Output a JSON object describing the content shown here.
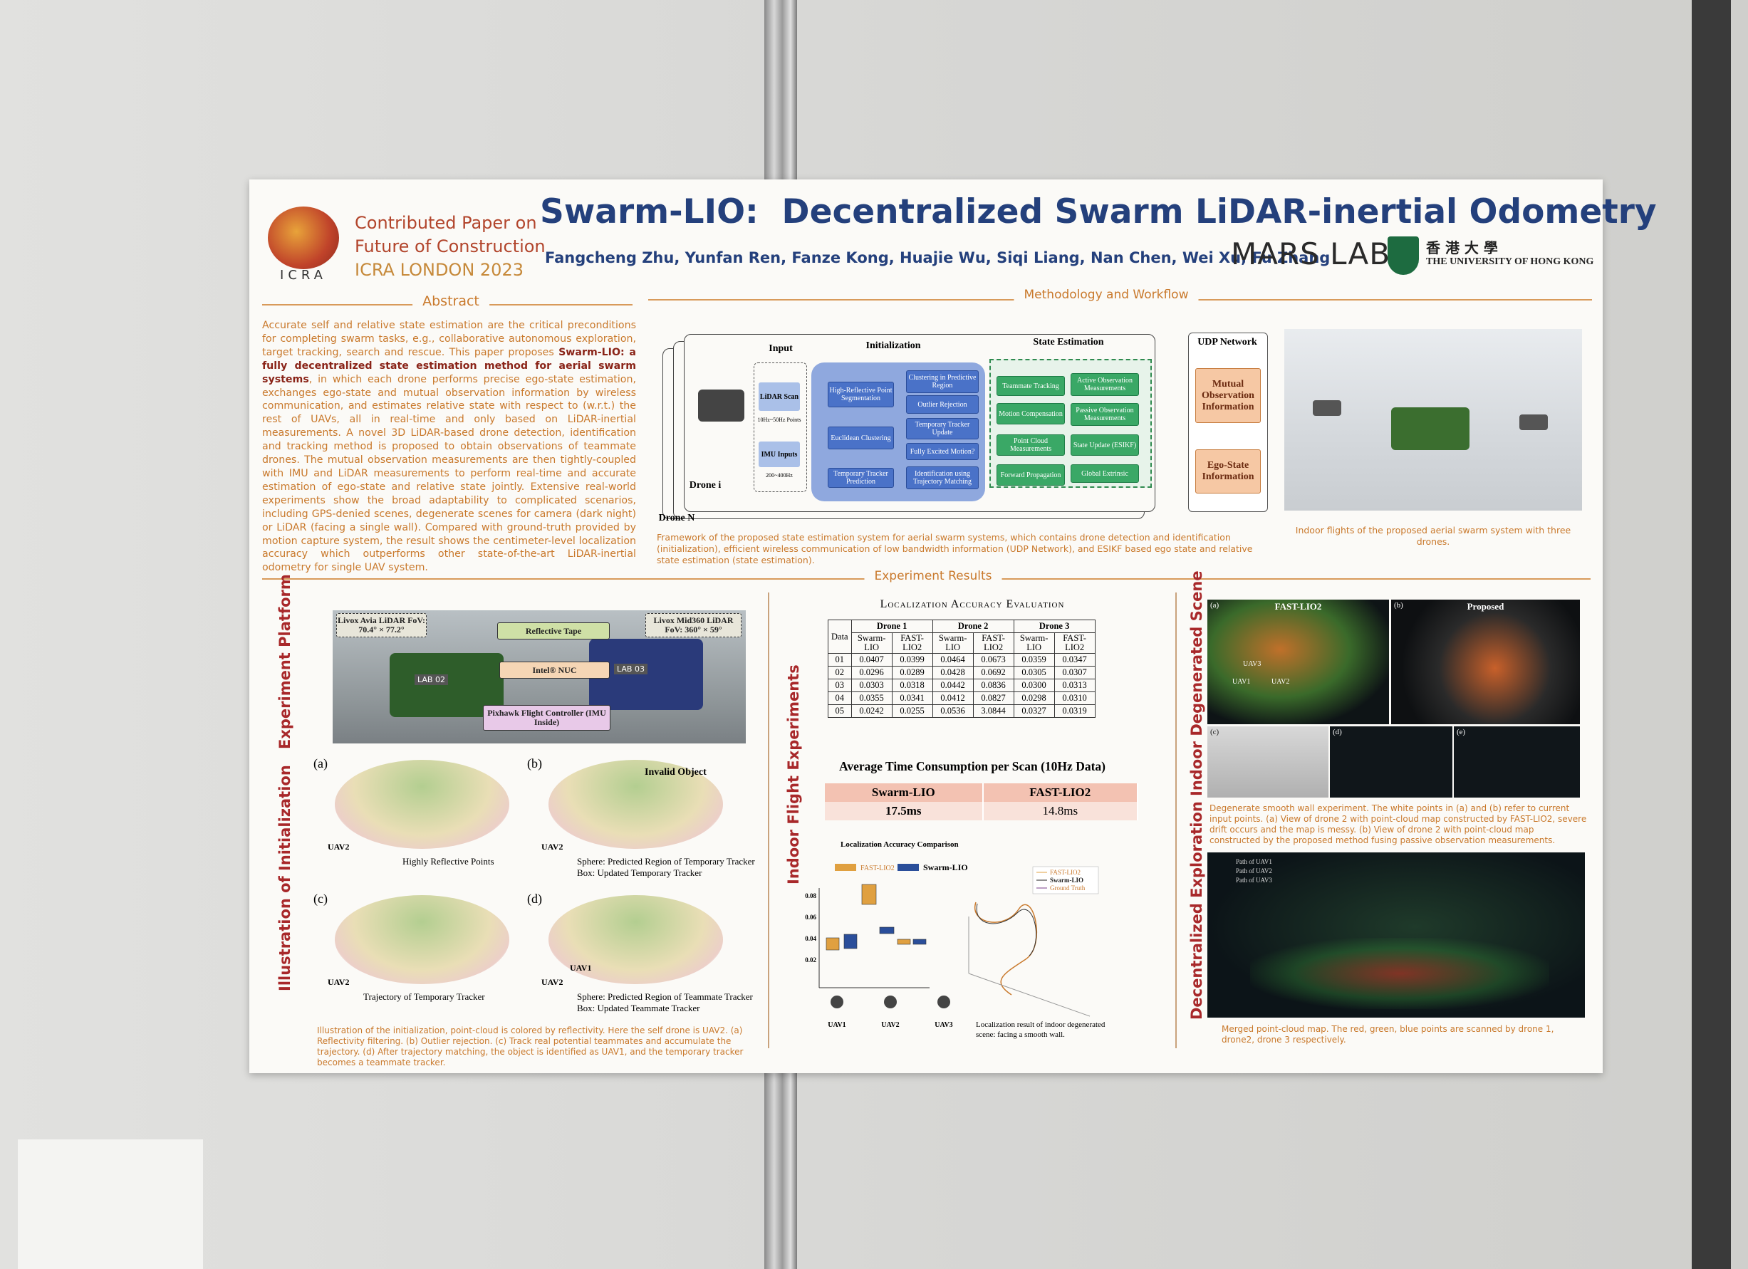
{
  "header": {
    "affiliation": [
      "Contributed Paper on",
      "Future of Construction",
      "ICRA LONDON 2023"
    ],
    "logo_text": "ICRA",
    "title": "Swarm-LIO:  Decentralized Swarm LiDAR-inertial Odometry",
    "authors": "Fangcheng Zhu, Yunfan Ren, Fanze Kong, Huajie Wu, Siqi Liang, Nan Chen, Wei Xu, Fu Zhang",
    "lab": "MARS LAB",
    "university_cn": "香 港 大 學",
    "university_en": "THE UNIVERSITY OF HONG KONG"
  },
  "abstract": {
    "heading": "Abstract",
    "text_before": "Accurate self and relative state estimation are the critical preconditions for completing swarm tasks, e.g., collaborative autonomous exploration, target tracking, search and rescue. This paper proposes ",
    "text_bold": "Swarm-LIO: a fully decentralized state estimation method for aerial swarm systems",
    "text_after": ", in which each drone performs precise ego-state estimation, exchanges ego-state and mutual observation information by wireless communication, and estimates relative state with respect to (w.r.t.) the rest of UAVs, all in real-time and only based on LiDAR-inertial measurements. A novel 3D LiDAR-based drone detection, identification and tracking method is proposed to obtain observations of teammate drones. The mutual observation measurements are then tightly-coupled with IMU and LiDAR measurements to perform real-time and accurate estimation of ego-state and relative state jointly. Extensive real-world experiments show the broad adaptability to complicated scenarios, including GPS-denied scenes, degenerate scenes for camera (dark night) or LiDAR (facing a single wall). Compared with ground-truth provided by motion capture system, the result shows the centimeter-level localization accuracy which outperforms other state-of-the-art LiDAR-inertial odometry for single UAV system."
  },
  "methodology": {
    "heading": "Methodology and Workflow",
    "diagram": {
      "input": "Input",
      "initialization": "Initialization",
      "state_estimation": "State Estimation",
      "udp": "UDP Network",
      "drone_i": "Drone i",
      "drone_n": "Drone N",
      "lidar": "LiDAR Scan",
      "lidar_rate": "10Hz~50Hz Points",
      "imu": "IMU Inputs",
      "imu_rate": "200~400Hz",
      "init_blocks": [
        "High-Reflective Point Segmentation",
        "Euclidean Clustering",
        "Temporary Tracker Prediction",
        "Clustering in Predictive Region",
        "Outlier Rejection",
        "Temporary Tracker Update",
        "Fully Excited Motion?",
        "Identification using Trajectory Matching"
      ],
      "state_blocks": [
        "Teammate Tracking",
        "Motion Compensation",
        "Point Cloud Measurements",
        "Forward Propagation",
        "Active Observation Measurements",
        "Passive Observation Measurements",
        "State Update (ESIKF)",
        "Global Extrinsic"
      ],
      "outputs": [
        "Mutual Observation Information",
        "Ego-State Information"
      ]
    },
    "caption": "Framework of the proposed state estimation system for aerial swarm systems, which contains drone detection and identification (initialization), efficient wireless communication of low bandwidth information (UDP Network), and ESIKF based ego state and relative state estimation (state estimation).",
    "photo_caption": "Indoor flights of the proposed aerial swarm system with three drones."
  },
  "results": {
    "heading": "Experiment Results",
    "platform": {
      "label": "Experiment Platform",
      "callouts": [
        "Livox Avia LiDAR FoV: 70.4° × 77.2°",
        "Reflective Tape",
        "Livox Mid360 LiDAR FoV: 360° × 59°",
        "Intel® NUC",
        "Pixhawk Flight Controller (IMU Inside)"
      ],
      "tags": [
        "LAB 02",
        "LAB 03"
      ]
    },
    "initialization": {
      "label": "Illustration of Initialization",
      "panels": [
        {
          "tag": "(a)",
          "notes": [
            "UAV2",
            "Highly Reflective Points"
          ]
        },
        {
          "tag": "(b)",
          "notes": [
            "UAV2",
            "Invalid Object",
            "Sphere: Predicted Region of Temporary Tracker",
            "Box: Updated Temporary Tracker"
          ]
        },
        {
          "tag": "(c)",
          "notes": [
            "UAV2",
            "Trajectory of Temporary Tracker"
          ]
        },
        {
          "tag": "(d)",
          "notes": [
            "UAV1",
            "UAV2",
            "Sphere: Predicted Region of Teammate Tracker",
            "Box: Updated Teammate Tracker"
          ]
        }
      ],
      "caption": "Illustration of the initialization, point-cloud is colored by reflectivity. Here the self drone is UAV2. (a) Reflectivity filtering. (b) Outlier rejection. (c) Track real potential teammates and accumulate the trajectory. (d) After trajectory matching, the object is identified as UAV1, and the temporary tracker becomes a teammate tracker."
    },
    "indoor_flight": {
      "label": "Indoor Flight Experiments",
      "table": {
        "title": "Localization Accuracy Evaluation",
        "corner": "Data",
        "groups": [
          "Drone 1",
          "Drone 2",
          "Drone 3"
        ],
        "columns": [
          "Swarm-LIO",
          "FAST-LIO2",
          "Swarm-LIO",
          "FAST-LIO2",
          "Swarm-LIO",
          "FAST-LIO2"
        ],
        "rows": [
          [
            "01",
            "0.0407",
            "0.0399",
            "0.0464",
            "0.0673",
            "0.0359",
            "0.0347"
          ],
          [
            "02",
            "0.0296",
            "0.0289",
            "0.0428",
            "0.0692",
            "0.0305",
            "0.0307"
          ],
          [
            "03",
            "0.0303",
            "0.0318",
            "0.0442",
            "0.0836",
            "0.0300",
            "0.0313"
          ],
          [
            "04",
            "0.0355",
            "0.0341",
            "0.0412",
            "0.0827",
            "0.0298",
            "0.0310"
          ],
          [
            "05",
            "0.0242",
            "0.0255",
            "0.0536",
            "3.0844",
            "0.0327",
            "0.0319"
          ]
        ]
      },
      "time": {
        "title": "Average Time Consumption per Scan (10Hz Data)",
        "columns": [
          "Swarm-LIO",
          "FAST-LIO2"
        ],
        "values": [
          "17.5ms",
          "14.8ms"
        ]
      },
      "plot": {
        "title": "Localization Accuracy Comparison",
        "legend": [
          "FAST-LIO2",
          "Swarm-LIO"
        ],
        "yticks": [
          "0.08",
          "0.06",
          "0.04",
          "0.02"
        ],
        "drones": [
          "UAV1",
          "UAV2",
          "UAV3"
        ],
        "traj_legend": [
          "FAST-LIO2",
          "Swarm-LIO",
          "Ground Truth"
        ],
        "traj_caption": "Localization result of indoor degenerated scene: facing a smooth wall."
      }
    },
    "degenerated": {
      "label": "Indoor Degenerated Scene",
      "panels": [
        {
          "tag": "(a)",
          "title": "FAST-LIO2"
        },
        {
          "tag": "(b)",
          "title": "Proposed"
        },
        {
          "tag": "(c)"
        },
        {
          "tag": "(d)"
        },
        {
          "tag": "(e)"
        }
      ],
      "uavs": [
        "UAV1",
        "UAV2",
        "UAV3"
      ],
      "caption": "Degenerate smooth wall experiment. The white points in (a) and (b) refer to current input points. (a) View of drone 2 with point-cloud map constructed by FAST-LIO2, severe drift occurs and the map is messy. (b) View of drone 2 with point-cloud map constructed by the proposed method fusing passive observation measurements."
    },
    "exploration": {
      "label": "Decentralized Exploration",
      "paths": [
        "Path of UAV1",
        "Path of UAV2",
        "Path of UAV3"
      ],
      "caption": "Merged point-cloud map. The red, green, blue points are scanned by drone 1, drone2, drone 3 respectively."
    }
  }
}
